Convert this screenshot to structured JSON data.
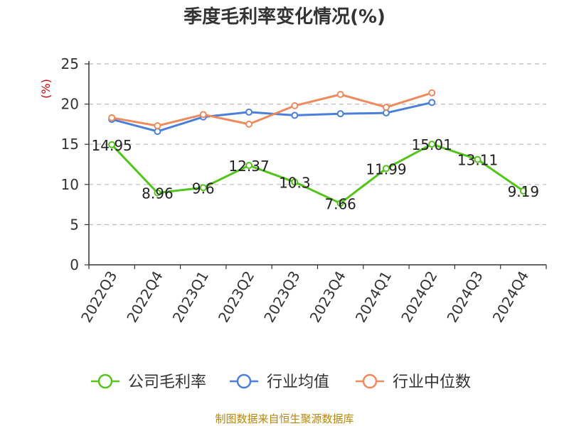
{
  "chart_data": {
    "type": "line",
    "title": "季度毛利率变化情况(%)",
    "ylabel": "(%)",
    "xlabel": "",
    "ylim": [
      0,
      25
    ],
    "yticks": [
      0,
      5,
      10,
      15,
      20,
      25
    ],
    "grid": true,
    "legend_position": "bottom",
    "categories": [
      "2022Q3",
      "2022Q4",
      "2023Q1",
      "2023Q2",
      "2023Q3",
      "2023Q4",
      "2024Q1",
      "2024Q2",
      "2024Q3",
      "2024Q4"
    ],
    "series": [
      {
        "name": "公司毛利率",
        "color": "#52c41a",
        "values": [
          14.95,
          8.96,
          9.6,
          12.37,
          10.3,
          7.66,
          11.99,
          15.01,
          13.11,
          9.19
        ],
        "labels": [
          "14.95",
          "8.96",
          "9.6",
          "12.37",
          "10.3",
          "7.66",
          "11.99",
          "15.01",
          "13.11",
          "9.19"
        ]
      },
      {
        "name": "行业均值",
        "color": "#4a7fdc",
        "values": [
          18.1,
          16.6,
          18.4,
          19.0,
          18.6,
          18.8,
          18.9,
          20.2,
          null,
          null
        ]
      },
      {
        "name": "行业中位数",
        "color": "#f08a5d",
        "values": [
          18.3,
          17.3,
          18.7,
          17.5,
          19.8,
          21.2,
          19.6,
          21.4,
          null,
          null
        ]
      }
    ]
  },
  "source_text": "制图数据来自恒生聚源数据库"
}
